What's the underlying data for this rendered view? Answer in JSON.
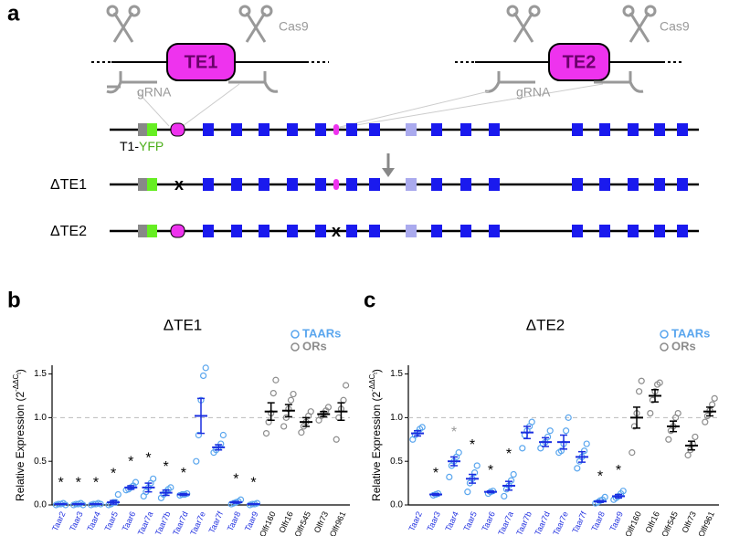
{
  "diagram": {
    "panel_labels": [
      "a",
      "b",
      "c"
    ],
    "te1": "TE1",
    "te2": "TE2",
    "cas9": [
      "Cas9",
      "Cas9"
    ],
    "grna": [
      "gRNA",
      "gRNA"
    ],
    "reporter": [
      "T1-",
      "YFP"
    ],
    "rows": [
      "ΔTE1",
      "ΔTE2"
    ],
    "deletion_mark": [
      "x",
      "x"
    ]
  },
  "chart_data": [
    {
      "type": "dotplot",
      "title": "ΔTE1",
      "y_label": [
        "Relative Expression (2",
        "-ΔΔC",
        "t",
        ")"
      ],
      "ylim": [
        0,
        1.6
      ],
      "yticks": [
        {
          "value": 0,
          "label": "0.0"
        },
        0.5,
        {
          "value": 1,
          "label": "1.0"
        },
        1.5
      ],
      "reference_line": 1,
      "series": [
        {
          "name": "TAARs",
          "color": "#5aa6ee",
          "label_color": "#2030e0",
          "mean_color": "#1a2ee0",
          "categories": [
            "Taar2",
            "Taar3",
            "Taar4",
            "Taar5",
            "Taar6",
            "Taar7a",
            "Taar7b",
            "Taar7d",
            "Taar7e",
            "Taar7f",
            "Taar8",
            "Taar9"
          ],
          "means": [
            0.01,
            0.01,
            0.01,
            0.03,
            0.2,
            0.2,
            0.14,
            0.12,
            1.02,
            0.66,
            0.03,
            0.01
          ],
          "errors": [
            0.005,
            0.005,
            0.005,
            0.02,
            0.02,
            0.05,
            0.03,
            0.01,
            0.2,
            0.03,
            0.01,
            0.005
          ],
          "points": [
            [
              0,
              0.01,
              0.01,
              0.02,
              0
            ],
            [
              0,
              0.01,
              0.01,
              0.02,
              0
            ],
            [
              0,
              0.01,
              0.01,
              0.02,
              0.01
            ],
            [
              0,
              0.01,
              0.03,
              0.03,
              0.12
            ],
            [
              0.17,
              0.18,
              0.2,
              0.22,
              0.26
            ],
            [
              0.1,
              0.15,
              0.2,
              0.25,
              0.3
            ],
            [
              0.08,
              0.12,
              0.15,
              0.18,
              0.2
            ],
            [
              0.11,
              0.12,
              0.12,
              0.13
            ],
            [
              0.5,
              0.8,
              1.2,
              1.48,
              1.57
            ],
            [
              0.6,
              0.63,
              0.66,
              0.7,
              0.8
            ],
            [
              0.01,
              0.02,
              0.03,
              0.04,
              0.06
            ],
            [
              0,
              0.01,
              0.01,
              0.02
            ]
          ],
          "sig": [
            "*",
            "*",
            "*",
            "*",
            "*",
            "*",
            "*",
            "*",
            null,
            null,
            "*",
            "*"
          ],
          "sig_colors": [
            "#000",
            "#000",
            "#000",
            "#000",
            "#000",
            "#000",
            "#000",
            "#000",
            null,
            null,
            "#000",
            "#000"
          ]
        },
        {
          "name": "ORs",
          "color": "#8c8c8c",
          "label_color": "#000",
          "mean_color": "#000",
          "categories": [
            "Olfr160",
            "Olfr16",
            "Olfr545",
            "Olfr73",
            "Olfr961"
          ],
          "means": [
            1.07,
            1.08,
            0.95,
            1.04,
            1.07
          ],
          "errors": [
            0.1,
            0.07,
            0.05,
            0.03,
            0.1
          ],
          "points": [
            [
              0.82,
              0.95,
              1.05,
              1.28,
              1.43
            ],
            [
              0.9,
              1.0,
              1.1,
              1.2,
              1.27
            ],
            [
              0.83,
              0.9,
              0.95,
              1.02,
              1.07
            ],
            [
              0.97,
              1.02,
              1.05,
              1.08,
              1.12
            ],
            [
              0.75,
              1.0,
              1.1,
              1.2,
              1.37
            ]
          ]
        }
      ]
    },
    {
      "type": "dotplot",
      "title": "ΔTE2",
      "y_label": [
        "Relative Expression (2",
        "-ΔΔC",
        "t",
        ")"
      ],
      "ylim": [
        0,
        1.6
      ],
      "yticks": [
        {
          "value": 0,
          "label": "0.0"
        },
        0.5,
        {
          "value": 1,
          "label": "1.0"
        },
        1.5
      ],
      "reference_line": 1,
      "series": [
        {
          "name": "TAARs",
          "color": "#5aa6ee",
          "label_color": "#2030e0",
          "mean_color": "#1a2ee0",
          "categories": [
            "Taar2",
            "Taar3",
            "Taar4",
            "Taar5",
            "Taar6",
            "Taar7a",
            "Taar7b",
            "Taar7d",
            "Taar7e",
            "Taar7f",
            "Taar8",
            "Taar9"
          ],
          "means": [
            0.82,
            0.12,
            0.5,
            0.3,
            0.15,
            0.22,
            0.83,
            0.72,
            0.72,
            0.55,
            0.04,
            0.1
          ],
          "errors": [
            0.03,
            0.01,
            0.05,
            0.05,
            0.01,
            0.05,
            0.07,
            0.05,
            0.08,
            0.06,
            0.01,
            0.02
          ],
          "points": [
            [
              0.75,
              0.8,
              0.83,
              0.87,
              0.89
            ],
            [
              0.11,
              0.12,
              0.13
            ],
            [
              0.32,
              0.45,
              0.5,
              0.55,
              0.6
            ],
            [
              0.15,
              0.25,
              0.3,
              0.37,
              0.45
            ],
            [
              0.13,
              0.15,
              0.16
            ],
            [
              0.1,
              0.18,
              0.22,
              0.28,
              0.35
            ],
            [
              0.65,
              0.8,
              0.85,
              0.9,
              0.95
            ],
            [
              0.65,
              0.7,
              0.72,
              0.78,
              0.85
            ],
            [
              0.6,
              0.62,
              0.7,
              0.85,
              1.0
            ],
            [
              0.42,
              0.5,
              0.55,
              0.62,
              0.7
            ],
            [
              0.02,
              0.03,
              0.05,
              0.06,
              0.09
            ],
            [
              0.06,
              0.08,
              0.1,
              0.13,
              0.16
            ]
          ],
          "sig": [
            null,
            "*",
            "*",
            "*",
            "*",
            "*",
            null,
            null,
            null,
            null,
            "*",
            "*"
          ],
          "sig_colors": [
            null,
            "#000",
            "#999",
            "#000",
            "#000",
            "#000",
            null,
            null,
            null,
            null,
            "#000",
            "#000"
          ]
        },
        {
          "name": "ORs",
          "color": "#8c8c8c",
          "label_color": "#000",
          "mean_color": "#000",
          "categories": [
            "Olfr160",
            "Olfr16",
            "Olfr545",
            "Olfr73",
            "Olfr961"
          ],
          "means": [
            1.0,
            1.25,
            0.9,
            0.68,
            1.07
          ],
          "errors": [
            0.12,
            0.07,
            0.06,
            0.05,
            0.05
          ],
          "points": [
            [
              0.6,
              0.9,
              1.05,
              1.3,
              1.42
            ],
            [
              1.05,
              1.2,
              1.3,
              1.38,
              1.4
            ],
            [
              0.75,
              0.85,
              0.9,
              1.0,
              1.05
            ],
            [
              0.57,
              0.63,
              0.7,
              0.78
            ],
            [
              0.95,
              1.02,
              1.08,
              1.15,
              1.22
            ]
          ]
        }
      ]
    }
  ]
}
